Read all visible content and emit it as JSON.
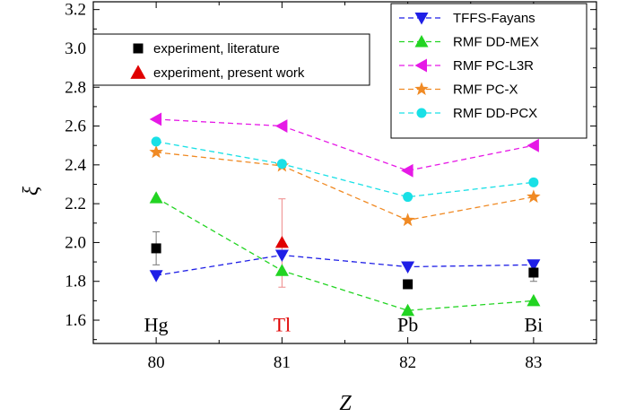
{
  "chart_data": {
    "type": "line",
    "xlabel": "Z",
    "ylabel": "ξ",
    "xlim": [
      79.5,
      83.5
    ],
    "ylim": [
      1.48,
      3.24
    ],
    "x_ticks": [
      80,
      81,
      82,
      83
    ],
    "y_ticks": [
      1.6,
      1.8,
      2.0,
      2.2,
      2.4,
      2.6,
      2.8,
      3.0,
      3.2
    ],
    "element_labels": [
      {
        "x": 80,
        "y": 1.58,
        "text": "Hg",
        "color": "#000000"
      },
      {
        "x": 81,
        "y": 1.58,
        "text": "Tl",
        "color": "#e00000"
      },
      {
        "x": 82,
        "y": 1.58,
        "text": "Pb",
        "color": "#000000"
      },
      {
        "x": 83,
        "y": 1.58,
        "text": "Bi",
        "color": "#000000"
      }
    ],
    "series": [
      {
        "name": "TFFS-Fayans",
        "color": "#1f1fe6",
        "marker": "triangle-down",
        "style": "dashed-line",
        "x": [
          80,
          81,
          82,
          83
        ],
        "y": [
          1.83,
          1.935,
          1.875,
          1.885
        ]
      },
      {
        "name": "RMF DD-MEX",
        "color": "#22d422",
        "marker": "triangle-up",
        "style": "dashed-line",
        "x": [
          80,
          81,
          82,
          83
        ],
        "y": [
          2.23,
          1.855,
          1.65,
          1.7
        ]
      },
      {
        "name": "RMF PC-L3R",
        "color": "#e619e6",
        "marker": "triangle-left",
        "style": "dashed-line",
        "x": [
          80,
          81,
          82,
          83
        ],
        "y": [
          2.635,
          2.6,
          2.37,
          2.5
        ]
      },
      {
        "name": "RMF PC-X",
        "color": "#f08a24",
        "marker": "star",
        "style": "dashed-line",
        "x": [
          80,
          81,
          82,
          83
        ],
        "y": [
          2.465,
          2.395,
          2.115,
          2.235
        ]
      },
      {
        "name": "RMF DD-PCX",
        "color": "#19e0e6",
        "marker": "circle",
        "style": "dashed-line",
        "x": [
          80,
          81,
          82,
          83
        ],
        "y": [
          2.52,
          2.405,
          2.235,
          2.31
        ]
      },
      {
        "name": "experiment, literature",
        "color": "#000000",
        "marker": "square",
        "style": "points",
        "x": [
          80,
          82,
          83
        ],
        "y": [
          1.97,
          1.785,
          1.845
        ],
        "err": [
          0.085,
          0.0,
          0.045
        ]
      },
      {
        "name": "experiment, present work",
        "color": "#e00000",
        "marker": "triangle-up",
        "style": "points",
        "x": [
          81
        ],
        "y": [
          2.0
        ],
        "err_low": [
          0.23
        ],
        "err_high": [
          0.225
        ]
      }
    ],
    "legends": [
      {
        "placement": "top-left",
        "entries": [
          "experiment, literature",
          "experiment, present work"
        ]
      },
      {
        "placement": "top-right",
        "entries": [
          "TFFS-Fayans",
          "RMF DD-MEX",
          "RMF PC-L3R",
          "RMF PC-X",
          "RMF DD-PCX"
        ]
      }
    ]
  }
}
